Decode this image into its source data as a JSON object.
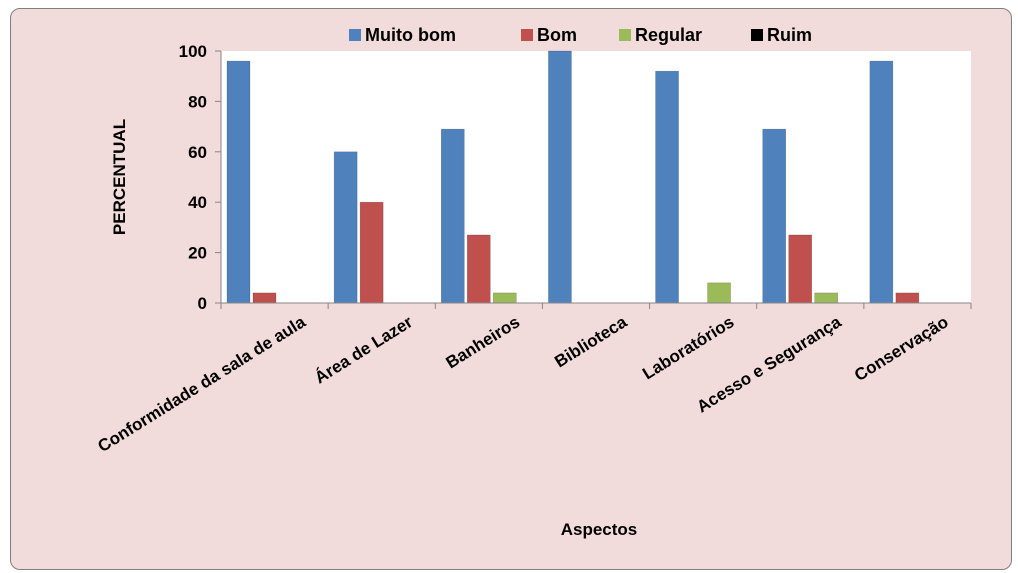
{
  "chart_data": {
    "type": "bar",
    "title": "",
    "xlabel": "Aspectos",
    "ylabel": "PERCENTUAL",
    "ylim": [
      0,
      100
    ],
    "yticks": [
      0,
      20,
      40,
      60,
      80,
      100
    ],
    "grid": false,
    "legend_position": "top",
    "categories": [
      "Conformidade da sala de aula",
      "Área de Lazer",
      "Banheiros",
      "Biblioteca",
      "Laboratórios",
      "Acesso e Segurança",
      "Conservação"
    ],
    "series": [
      {
        "name": "Muito bom",
        "color": "#4f81bd",
        "values": [
          96,
          60,
          69,
          100,
          92,
          69,
          96
        ]
      },
      {
        "name": "Bom",
        "color": "#c0504d",
        "values": [
          4,
          40,
          27,
          0,
          0,
          27,
          4
        ]
      },
      {
        "name": "Regular",
        "color": "#9bbb59",
        "values": [
          0,
          0,
          4,
          0,
          8,
          4,
          0
        ]
      },
      {
        "name": "Ruim",
        "color": "#000000",
        "values": [
          0,
          0,
          0,
          0,
          0,
          0,
          0
        ]
      }
    ]
  },
  "colors": {
    "frame_background": "#f2dcdb",
    "plot_background": "#ffffff"
  }
}
